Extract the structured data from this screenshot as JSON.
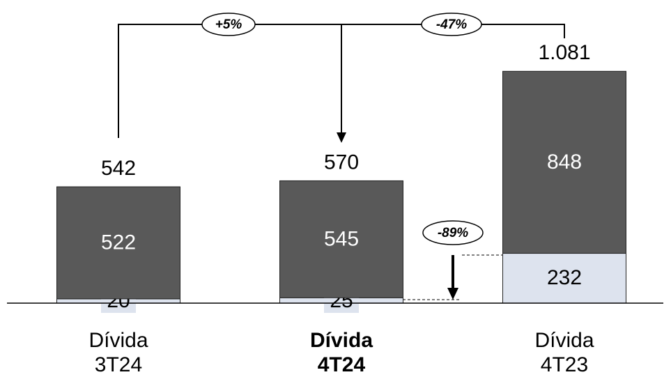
{
  "chart_data": {
    "type": "stacked-bar",
    "categories": [
      [
        "Dívida",
        "3T24"
      ],
      [
        "Dívida",
        "4T24"
      ],
      [
        "Dívida",
        "4T23"
      ]
    ],
    "series": [
      {
        "color": "#dde3ee",
        "label_color": "#000000",
        "values": [
          20,
          25,
          232
        ]
      },
      {
        "color": "#595959",
        "label_color": "#ffffff",
        "values": [
          522,
          545,
          848
        ]
      }
    ],
    "totals": {
      "values": [
        542,
        570,
        1081
      ],
      "value_labels": [
        "542",
        "570",
        "1.081"
      ]
    },
    "annotations": [
      "+5%",
      "-47%",
      "-89%"
    ]
  }
}
